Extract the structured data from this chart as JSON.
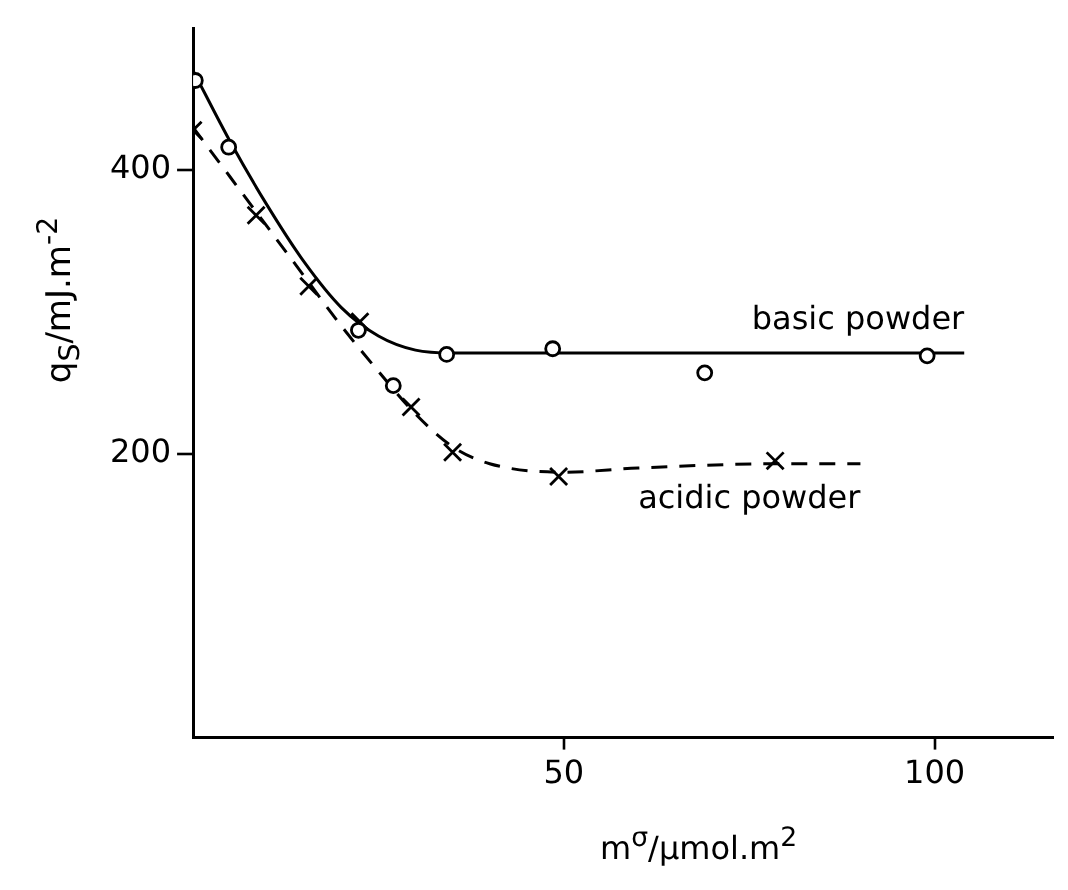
{
  "chart_data": {
    "type": "scatter",
    "xlabel": "m$^{σ}$/μmol.m$^{2}$",
    "ylabel": "q$_{S}$/mJ.m$^{-2}$",
    "xlim": [
      0,
      116
    ],
    "ylim": [
      0,
      500
    ],
    "xticks": [
      50,
      100
    ],
    "yticks": [
      200,
      400
    ],
    "grid": false,
    "legend": false,
    "series": [
      {
        "type": "scatter",
        "marker": "circle",
        "color": "#000000",
        "x": [
          0.3,
          4.8,
          22.3,
          27,
          34.2,
          48.5,
          69,
          99
        ],
        "values": [
          463,
          416,
          287,
          248,
          270,
          274,
          257,
          269
        ]
      },
      {
        "type": "scatter",
        "marker": "cross",
        "color": "#000000",
        "x": [
          0,
          8.5,
          15.6,
          22.5,
          29.4,
          35,
          49.3,
          78.5
        ],
        "values": [
          428,
          368,
          318,
          293,
          233,
          201,
          184,
          195
        ]
      },
      {
        "type": "line",
        "name": "basic powder",
        "line_style": "solid",
        "marker": "none",
        "color": "#000000",
        "x": [
          0,
          5,
          10,
          15,
          20,
          25,
          30,
          35,
          104
        ],
        "values": [
          470,
          420,
          375,
          335,
          303,
          283,
          273,
          271,
          271
        ]
      },
      {
        "type": "line",
        "name": "acidic powder",
        "line_style": "dashed",
        "marker": "none",
        "color": "#000000",
        "x": [
          0,
          5,
          10,
          15,
          20,
          25,
          30,
          35,
          40,
          50,
          60,
          80,
          90
        ],
        "values": [
          430,
          395,
          360,
          325,
          290,
          258,
          228,
          205,
          193,
          187,
          190,
          193,
          193
        ]
      }
    ]
  }
}
